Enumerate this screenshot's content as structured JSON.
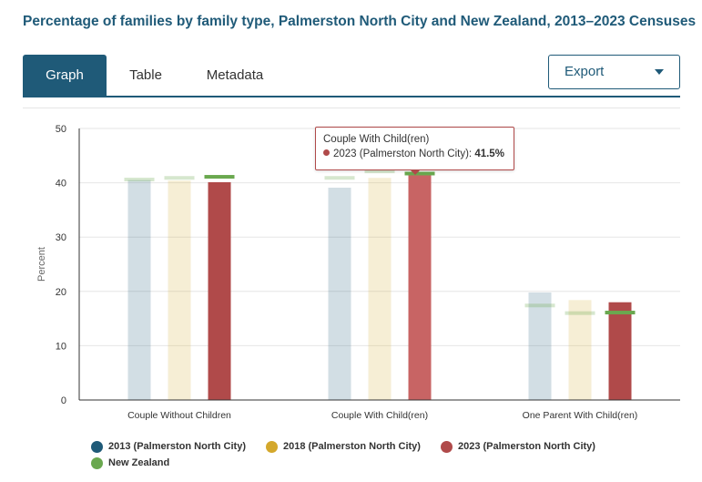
{
  "header": {
    "title": "Percentage of families by family type, Palmerston North City and New Zealand, 2013–2023 Censuses"
  },
  "tabs": [
    {
      "label": "Graph",
      "active": true
    },
    {
      "label": "Table",
      "active": false
    },
    {
      "label": "Metadata",
      "active": false
    }
  ],
  "export": {
    "label": "Export",
    "icon": "chevron-down-icon"
  },
  "tooltip": {
    "category": "Couple With Child(ren)",
    "series": "2023 (Palmerston North City)",
    "value": "41.5%"
  },
  "chart_data": {
    "type": "bar",
    "ylabel": "Percent",
    "xlabel": "",
    "ylim": [
      0,
      50
    ],
    "yticks": [
      0,
      10,
      20,
      30,
      40,
      50
    ],
    "grid": true,
    "legend_position": "bottom",
    "categories": [
      "Couple Without Children",
      "Couple With Child(ren)",
      "One Parent With Child(ren)"
    ],
    "series": [
      {
        "name": "2013 (Palmerston North City)",
        "color": "#1f5a78",
        "values": [
          40.5,
          39.1,
          19.8
        ]
      },
      {
        "name": "2018 (Palmerston North City)",
        "color": "#d4a82c",
        "values": [
          40.4,
          40.9,
          18.4
        ]
      },
      {
        "name": "2023 (Palmerston North City)",
        "color": "#b04a4a",
        "values": [
          40.1,
          41.5,
          18.0
        ]
      }
    ],
    "reference_series": {
      "name": "New Zealand",
      "color": "#6aa84f",
      "values": [
        [
          40.6,
          40.9,
          41.1
        ],
        [
          40.9,
          42.1,
          41.7
        ],
        [
          17.4,
          16.0,
          16.1
        ]
      ]
    }
  }
}
